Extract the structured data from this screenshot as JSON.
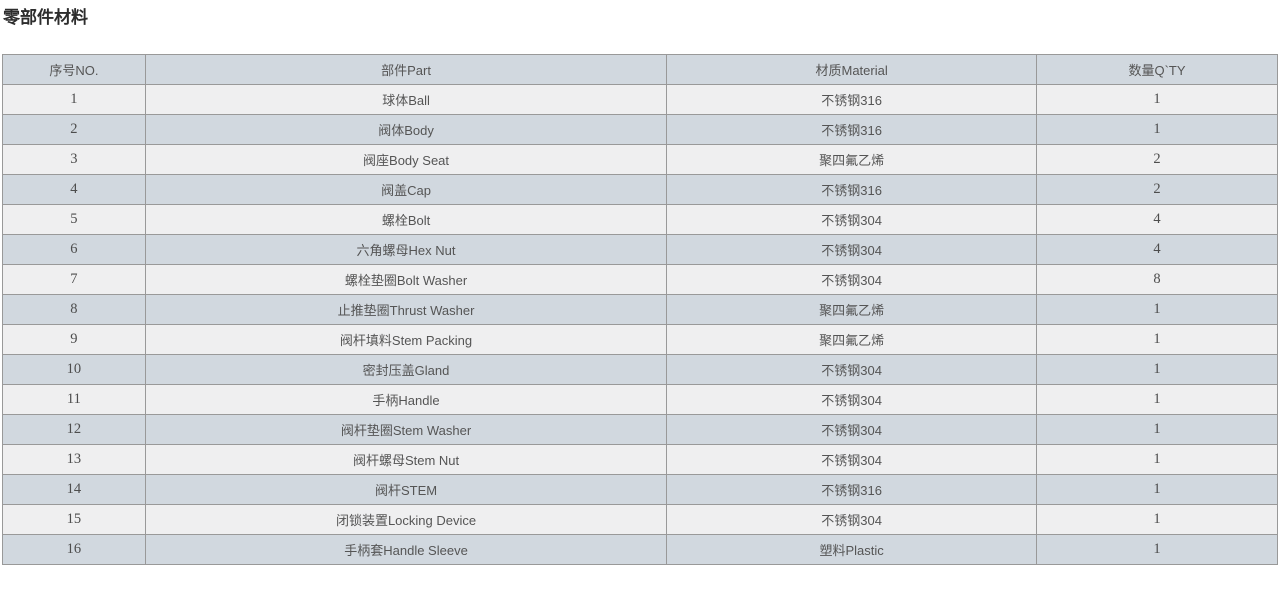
{
  "page": {
    "title": "零部件材料"
  },
  "table": {
    "columns": [
      {
        "key": "no",
        "label": "序号NO."
      },
      {
        "key": "part",
        "label": "部件Part"
      },
      {
        "key": "material",
        "label": "材质Material"
      },
      {
        "key": "qty",
        "label": "数量Q`TY"
      }
    ],
    "rows": [
      {
        "no": "1",
        "part": "球体Ball",
        "material": "不锈钢316",
        "qty": "1"
      },
      {
        "no": "2",
        "part": "阀体Body",
        "material": "不锈钢316",
        "qty": "1"
      },
      {
        "no": "3",
        "part": "阀座Body Seat",
        "material": "聚四氟乙烯",
        "qty": "2"
      },
      {
        "no": "4",
        "part": "阀盖Cap",
        "material": "不锈钢316",
        "qty": "2"
      },
      {
        "no": "5",
        "part": "螺栓Bolt",
        "material": "不锈钢304",
        "qty": "4"
      },
      {
        "no": "6",
        "part": "六角螺母Hex Nut",
        "material": "不锈钢304",
        "qty": "4"
      },
      {
        "no": "7",
        "part": "螺栓垫圈Bolt Washer",
        "material": "不锈钢304",
        "qty": "8"
      },
      {
        "no": "8",
        "part": "止推垫圈Thrust Washer",
        "material": "聚四氟乙烯",
        "qty": "1"
      },
      {
        "no": "9",
        "part": "阀杆填料Stem Packing",
        "material": "聚四氟乙烯",
        "qty": "1"
      },
      {
        "no": "10",
        "part": "密封压盖Gland",
        "material": "不锈钢304",
        "qty": "1"
      },
      {
        "no": "11",
        "part": "手柄Handle",
        "material": "不锈钢304",
        "qty": "1"
      },
      {
        "no": "12",
        "part": "阀杆垫圈Stem Washer",
        "material": "不锈钢304",
        "qty": "1"
      },
      {
        "no": "13",
        "part": "阀杆螺母Stem Nut",
        "material": "不锈钢304",
        "qty": "1"
      },
      {
        "no": "14",
        "part": "阀杆STEM",
        "material": "不锈钢316",
        "qty": "1"
      },
      {
        "no": "15",
        "part": "闭锁装置Locking Device",
        "material": "不锈钢304",
        "qty": "1"
      },
      {
        "no": "16",
        "part": "手柄套Handle Sleeve",
        "material": "塑料Plastic",
        "qty": "1"
      }
    ]
  },
  "colors": {
    "page_bg": "#ffffff",
    "header_bg": "#d1d8df",
    "row_odd_bg": "#efeff0",
    "row_even_bg": "#d1d8df",
    "border": "#999999",
    "cell_text": "#555555",
    "title_text": "#2d2d2d"
  }
}
